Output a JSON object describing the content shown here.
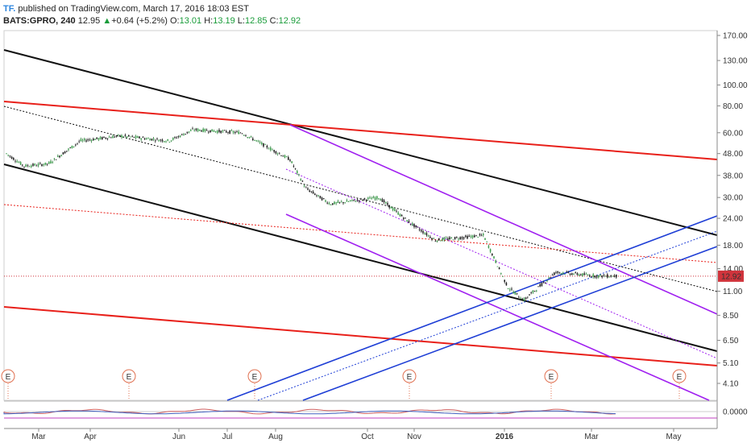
{
  "header": {
    "logo": "TF.",
    "published": "published on TradingView.com, March 17, 2016 18:03 EST",
    "symbol": "BATS:GPRO, 240",
    "last": "12.95",
    "arrow": "▲",
    "change": "+0.64 (+5.2%)",
    "o_label": "O:",
    "o_val": "13.01",
    "h_label": "H:",
    "h_val": "13.19",
    "l_label": "L:",
    "l_val": "12.85",
    "c_label": "C:",
    "c_val": "12.92"
  },
  "chart_data": {
    "type": "line",
    "y_scale": "log",
    "ylim": [
      3.7,
      180
    ],
    "y_ticks": [
      "170.00",
      "130.00",
      "100.00",
      "80.00",
      "60.00",
      "48.00",
      "38.00",
      "30.00",
      "24.00",
      "18.00",
      "14.00",
      "11.00",
      "8.50",
      "6.50",
      "5.10",
      "4.10"
    ],
    "x_ticks": [
      "Mar",
      "Apr",
      "Jun",
      "Jul",
      "Aug",
      "Oct",
      "Nov",
      "2016",
      "Mar",
      "May"
    ],
    "bold_x_tick": "2016",
    "price_label": "12.92",
    "price_label_color": "#d0343c",
    "earnings_marker": "E",
    "indicator_tick": "0.0000",
    "series": [
      {
        "values_dates": [
          "2015-02",
          "2015-03",
          "2015-04",
          "2015-05",
          "2015-06",
          "2015-07",
          "2015-07-20",
          "2015-08",
          "2015-08-15",
          "2015-09",
          "2015-10",
          "2015-10-30",
          "2015-11",
          "2015-12",
          "2015-12-15",
          "2016-01",
          "2016-02",
          "2016-03",
          "2016-03-17"
        ],
        "values": [
          48,
          42,
          43,
          55,
          58,
          55,
          62,
          60,
          45,
          33,
          28,
          30,
          23,
          19,
          20,
          11.5,
          10,
          13.5,
          12.95
        ]
      }
    ],
    "trendlines_color": {
      "black": "#111111",
      "red": "#e8201a",
      "purple": "#a020f0",
      "blue": "#1f3fd6"
    }
  }
}
